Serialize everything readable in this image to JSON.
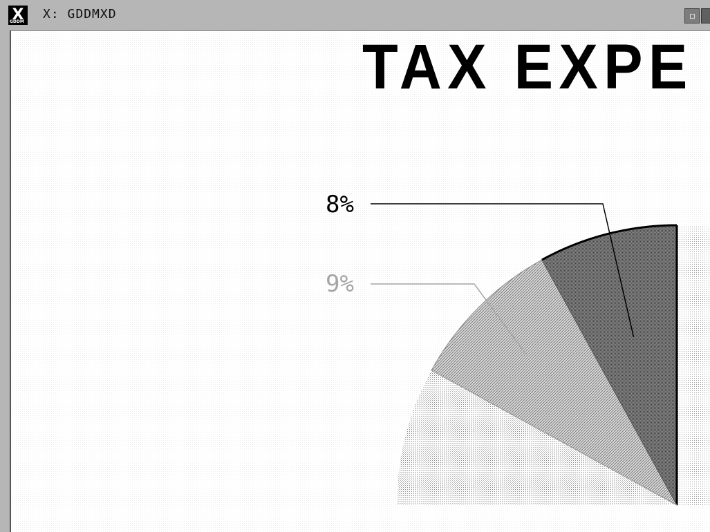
{
  "window": {
    "title": "X: GDDMXD",
    "logo_glyph": "X",
    "logo_caption": "GDDM"
  },
  "chart_data": {
    "type": "pie",
    "title": "TAX EXPE",
    "slices": [
      {
        "label": "8%",
        "value": 8,
        "color": "#666666",
        "pattern": "fine-hatch-dark"
      },
      {
        "label": "9%",
        "value": 9,
        "color": "#a0a0a0",
        "pattern": "diagonal-hatch"
      }
    ]
  },
  "icons": {
    "logo": "x-window-logo-icon",
    "minimize": "minimize-button-icon",
    "maximize": "maximize-button-icon"
  }
}
